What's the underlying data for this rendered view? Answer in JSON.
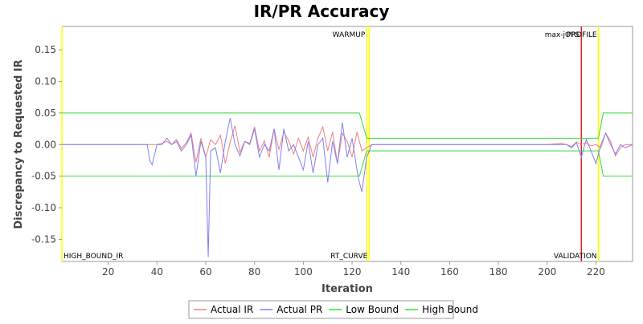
{
  "chart_data": {
    "type": "line",
    "title": "IR/PR Accuracy",
    "xlabel": "Iteration",
    "ylabel": "Discrepancy to Requested IR",
    "xlim": [
      1,
      235
    ],
    "ylim": [
      -0.185,
      0.187
    ],
    "x_ticks": [
      20,
      40,
      60,
      80,
      100,
      120,
      140,
      160,
      180,
      200,
      220
    ],
    "y_ticks": [
      -0.15,
      -0.1,
      -0.05,
      0.0,
      0.05,
      0.1,
      0.15
    ],
    "y_tick_labels": [
      "-0.15",
      "-0.10",
      "-0.05",
      "0.00",
      "0.05",
      "0.10",
      "0.15"
    ],
    "grid": false,
    "legend_position": "bottom",
    "series": [
      {
        "name": "Actual IR",
        "color": "#f08080",
        "x": [
          1,
          36,
          38,
          40,
          42,
          44,
          46,
          48,
          50,
          52,
          54,
          56,
          58,
          60,
          62,
          64,
          66,
          68,
          70,
          72,
          74,
          76,
          78,
          80,
          82,
          84,
          86,
          88,
          90,
          92,
          94,
          96,
          98,
          100,
          102,
          104,
          106,
          108,
          110,
          112,
          114,
          116,
          118,
          120,
          122,
          124,
          126,
          128,
          130,
          140,
          150,
          160,
          170,
          180,
          190,
          200,
          206,
          208,
          210,
          212,
          214,
          216,
          218,
          220,
          222,
          224,
          226,
          228,
          230,
          232,
          235
        ],
        "y": [
          0.0,
          0.0,
          0.0,
          0.0,
          0.002,
          0.005,
          0.0,
          0.008,
          -0.006,
          0.003,
          0.018,
          -0.028,
          0.01,
          -0.02,
          0.008,
          0.0,
          0.015,
          -0.03,
          0.004,
          0.03,
          -0.012,
          0.005,
          0.002,
          0.028,
          -0.01,
          0.006,
          -0.02,
          0.025,
          -0.008,
          0.02,
          0.006,
          -0.015,
          0.01,
          -0.01,
          0.012,
          -0.02,
          0.01,
          0.028,
          -0.01,
          0.02,
          -0.03,
          0.018,
          0.005,
          -0.02,
          0.02,
          -0.01,
          -0.005,
          0.0,
          0.0,
          0.0,
          0.0,
          0.0,
          0.0,
          0.0,
          0.0,
          0.0,
          0.002,
          0.0,
          -0.003,
          0.004,
          0.0,
          0.003,
          -0.002,
          0.0,
          -0.005,
          0.018,
          0.005,
          -0.018,
          -0.005,
          0.0,
          0.0
        ]
      },
      {
        "name": "Actual PR",
        "color": "#8080f0",
        "x": [
          1,
          36,
          37,
          38,
          40,
          42,
          44,
          46,
          48,
          50,
          52,
          54,
          56,
          58,
          60,
          61,
          62,
          64,
          66,
          68,
          70,
          72,
          74,
          76,
          78,
          80,
          82,
          84,
          86,
          88,
          90,
          92,
          94,
          96,
          98,
          100,
          102,
          104,
          106,
          108,
          110,
          112,
          114,
          116,
          118,
          120,
          122,
          123,
          124,
          126,
          128,
          130,
          140,
          150,
          160,
          170,
          180,
          190,
          200,
          206,
          208,
          210,
          212,
          214,
          216,
          218,
          220,
          222,
          224,
          226,
          228,
          230,
          232,
          235
        ],
        "y": [
          0.0,
          0.0,
          -0.025,
          -0.032,
          0.0,
          0.0,
          0.01,
          0.0,
          0.005,
          -0.01,
          0.0,
          0.015,
          -0.05,
          0.005,
          -0.02,
          -0.178,
          -0.01,
          -0.005,
          -0.045,
          0.005,
          0.042,
          0.0,
          -0.018,
          0.005,
          0.0,
          0.025,
          -0.02,
          0.0,
          -0.01,
          0.025,
          -0.04,
          0.025,
          -0.01,
          0.0,
          -0.02,
          -0.04,
          0.005,
          -0.045,
          0.0,
          0.01,
          -0.06,
          0.005,
          -0.03,
          0.035,
          -0.02,
          0.01,
          -0.04,
          -0.06,
          -0.075,
          -0.02,
          0.0,
          0.0,
          0.0,
          0.0,
          0.0,
          0.0,
          0.0,
          0.0,
          0.0,
          0.0,
          0.0,
          -0.005,
          0.003,
          -0.02,
          0.008,
          -0.01,
          -0.03,
          0.0,
          0.018,
          0.0,
          -0.015,
          0.0,
          -0.005,
          0.0
        ]
      },
      {
        "name": "Low Bound",
        "color": "#33dd33",
        "x": [
          1,
          123,
          126,
          221,
          223,
          235
        ],
        "y": [
          -0.05,
          -0.05,
          -0.01,
          -0.01,
          -0.05,
          -0.05
        ]
      },
      {
        "name": "High Bound",
        "color": "#33dd33",
        "x": [
          1,
          123,
          126,
          221,
          223,
          235
        ],
        "y": [
          0.05,
          0.05,
          0.01,
          0.01,
          0.05,
          0.05
        ]
      }
    ],
    "markers": [
      {
        "x": 126,
        "label": "WARMUP",
        "color": "#ffff00",
        "label_position": "top"
      },
      {
        "x": 127,
        "label": "",
        "color": "#ffff00",
        "label_position": "top"
      },
      {
        "x": 214,
        "label": "max-jOPS",
        "color": "#dd2222",
        "label_position": "top"
      },
      {
        "x": 221,
        "label": "PROFILE",
        "color": "#ffff00",
        "label_position": "top"
      },
      {
        "x": 1,
        "label": "HIGH_BOUND_IR",
        "color": "#ffff00",
        "label_position": "bottom"
      },
      {
        "x": 127,
        "label": "RT_CURVE",
        "color": "#ffff00",
        "label_position": "bottom"
      },
      {
        "x": 221,
        "label": "VALIDATION",
        "color": "#ffff00",
        "label_position": "bottom"
      }
    ]
  }
}
